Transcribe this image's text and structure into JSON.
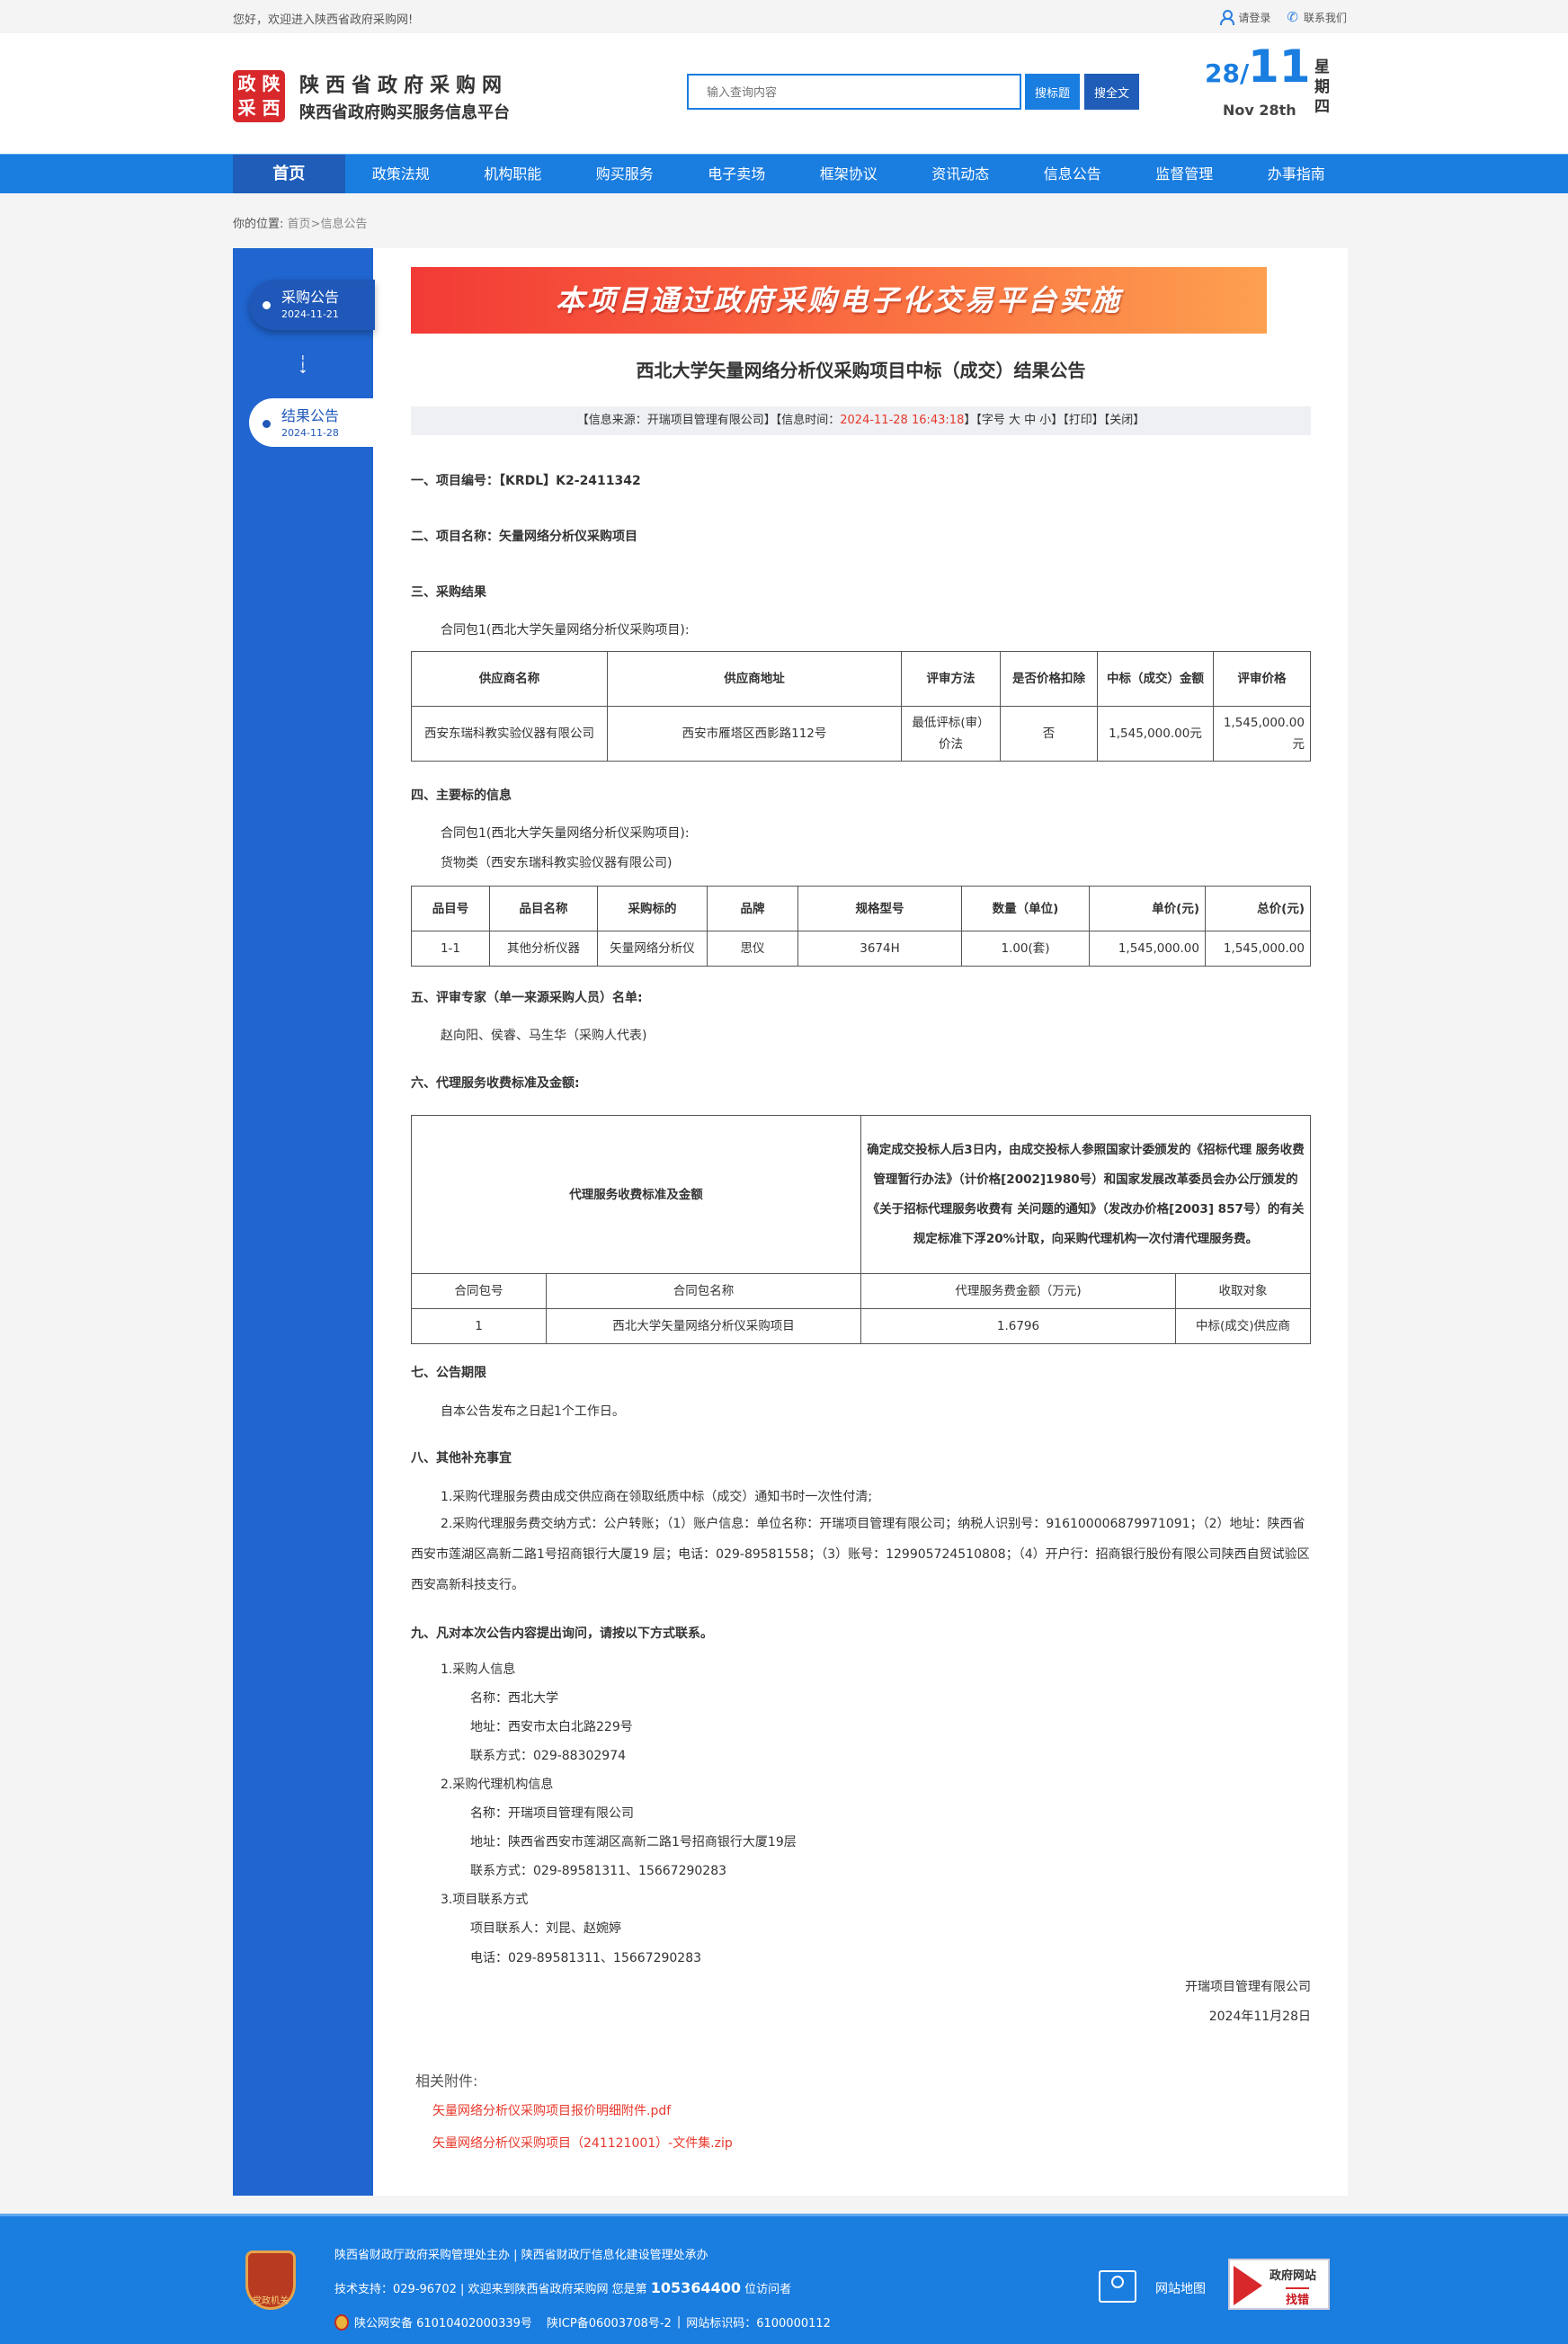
{
  "topbar": {
    "welcome": "您好，欢迎进入陕西省政府采购网!",
    "login": "请登录",
    "contact": "联系我们"
  },
  "header": {
    "logo_text": [
      "政",
      "陕",
      "采",
      "西"
    ],
    "site_name": "陕西省政府采购网",
    "site_sub": "陕西省政府购买服务信息平台",
    "search_placeholder": "输入查询内容",
    "search_title_btn": "搜标题",
    "search_full_btn": "搜全文",
    "date_day": "28/",
    "date_month": "11",
    "date_en": "Nov 28th",
    "weekday": "星期四"
  },
  "nav": [
    "首页",
    "政策法规",
    "机构职能",
    "购买服务",
    "电子卖场",
    "框架协议",
    "资讯动态",
    "信息公告",
    "监督管理",
    "办事指南"
  ],
  "breadcrumb": {
    "label": "你的位置:",
    "home": "首页",
    "current": ">信息公告"
  },
  "sidebar": [
    {
      "title": "采购公告",
      "date": "2024-11-21"
    },
    {
      "title": "结果公告",
      "date": "2024-11-28"
    }
  ],
  "article": {
    "banner": "本项目通过政府采购电子化交易平台实施",
    "title": "西北大学矢量网络分析仪采购项目中标（成交）结果公告",
    "info": {
      "source": "【信息来源：开瑞项目管理有限公司】【信息时间：",
      "time": "2024-11-28 16:43:18",
      "rest": "】【字号 大 中 小】【打印】【关闭】"
    },
    "s1": "一、项目编号：【KRDL】K2-2411342",
    "s2": "二、项目名称：矢量网络分析仪采购项目",
    "s3": "三、采购结果",
    "s3_pkg": "合同包1(西北大学矢量网络分析仪采购项目):",
    "table1": {
      "headers": [
        "供应商名称",
        "供应商地址",
        "评审方法",
        "是否价格扣除",
        "中标（成交）金额",
        "评审价格"
      ],
      "row": [
        "西安东瑞科教实验仪器有限公司",
        "西安市雁塔区西影路112号",
        "最低评标(审）价法",
        "否",
        "1,545,000.00元",
        "1,545,000.00元"
      ]
    },
    "s4": "四、主要标的信息",
    "s4_pkg": "合同包1(西北大学矢量网络分析仪采购项目):",
    "s4_type": "货物类（西安东瑞科教实验仪器有限公司)",
    "table2": {
      "headers": [
        "品目号",
        "品目名称",
        "采购标的",
        "品牌",
        "规格型号",
        "数量（单位)",
        "单价(元)",
        "总价(元)"
      ],
      "row": [
        "1-1",
        "其他分析仪器",
        "矢量网络分析仪",
        "思仪",
        "3674H",
        "1.00(套)",
        "1,545,000.00",
        "1,545,000.00"
      ]
    },
    "s5": "五、评审专家（单一来源采购人员）名单:",
    "s5_names": "赵向阳、侯睿、马生华（采购人代表)",
    "s6": "六、代理服务收费标准及金额:",
    "table3": {
      "label": "代理服务收费标准及金额",
      "desc": "确定成交投标人后3日内，由成交投标人参照国家计委颁发的《招标代理 服务收费管理暂行办法》（计价格[2002]1980号）和国家发展改革委员会办公厅颁发的《关于招标代理服务收费有 关问题的通知》（发改办价格[2003] 857号）的有关规定标准下浮20%计取，向采购代理机构一次付清代理服务费。",
      "headers": [
        "合同包号",
        "合同包名称",
        "代理服务费金额（万元)",
        "收取对象"
      ],
      "row": [
        "1",
        "西北大学矢量网络分析仪采购项目",
        "1.6796",
        "中标(成交)供应商"
      ]
    },
    "s7": "七、公告期限",
    "s7_text": "自本公告发布之日起1个工作日。",
    "s8": "八、其他补充事宜",
    "s8_1": "1.采购代理服务费由成交供应商在领取纸质中标（成交）通知书时一次性付清;",
    "s8_2": "2.采购代理服务费交纳方式：公户转账；（1）账户信息：单位名称：开瑞项目管理有限公司；纳税人识别号：916100006879971091；（2）地址：陕西省西安市莲湖区高新二路1号招商银行大厦19 层；电话：029-89581558；（3）账号：129905724510808；（4）开户行：招商银行股份有限公司陕西自贸试验区西安高新科技支行。",
    "s9": "九、凡对本次公告内容提出询问，请按以下方式联系。",
    "s9_items": [
      {
        "head": "1.采购人信息",
        "lines": [
          "名称：西北大学",
          "地址：西安市太白北路229号",
          "联系方式：029-88302974"
        ]
      },
      {
        "head": "2.采购代理机构信息",
        "lines": [
          "名称：开瑞项目管理有限公司",
          "地址：陕西省西安市莲湖区高新二路1号招商银行大厦19层",
          "联系方式：029-89581311、15667290283"
        ]
      },
      {
        "head": "3.项目联系方式",
        "lines": [
          "项目联系人：刘昆、赵婉婷",
          "电话：029-89581311、15667290283"
        ]
      }
    ],
    "signer": "开瑞项目管理有限公司",
    "sign_date": "2024年11月28日",
    "attachments_label": "相关附件:",
    "attachments": [
      "矢量网络分析仪采购项目报价明细附件.pdf",
      "矢量网络分析仪采购项目（241121001）-文件集.zip"
    ]
  },
  "footer": {
    "badge": "党政机关",
    "line1": "陕西省财政厅政府采购管理处主办 | 陕西省财政厅信息化建设管理处承办",
    "line2_a": "技术支持：029-96702 | 欢迎来到陕西省政府采购网 您是第",
    "visitors": "105364400",
    "line2_b": "位访问者",
    "police": "陕公网安备 61010402000339号",
    "icp": "陕ICP备06003708号-2",
    "sep": "|",
    "site_code": "网站标识码：6100000112",
    "sitemap": "网站地图",
    "err_a": "政府网站",
    "err_b": "找错"
  },
  "colors": {
    "primary": "#1a7de0",
    "nav_active": "#1f5db8",
    "sidebar": "#2065d0",
    "highlight": "#e8382c"
  }
}
